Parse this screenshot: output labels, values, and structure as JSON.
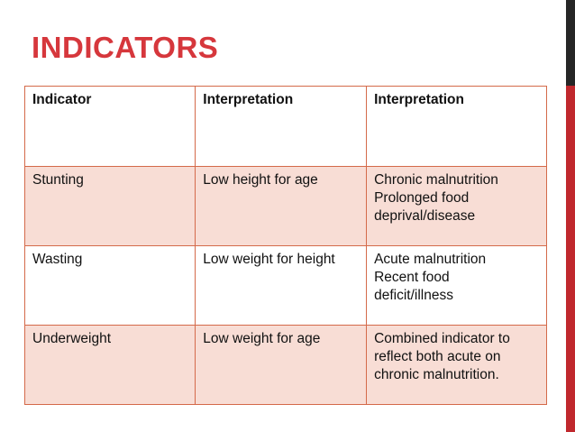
{
  "slide": {
    "title": "INDICATORS",
    "title_color": "#d6373c",
    "accent_colors": {
      "right_bar_dark": "#262626",
      "right_bar_red": "#c0282d",
      "table_border": "#d46a4a",
      "row_shade": "#f8ddd5"
    }
  },
  "table": {
    "headers": [
      "Indicator",
      "Interpretation",
      "Interpretation"
    ],
    "rows": [
      {
        "indicator": "Stunting",
        "interpretation_1": "Low height for age",
        "interpretation_2_lines": [
          "Chronic malnutrition",
          "Prolonged food",
          "deprival/disease"
        ]
      },
      {
        "indicator": "Wasting",
        "interpretation_1": "Low weight for height",
        "interpretation_2_lines": [
          "Acute malnutrition",
          "Recent food",
          "deficit/illness"
        ]
      },
      {
        "indicator": "Underweight",
        "interpretation_1": "Low weight for age",
        "interpretation_2_lines": [
          "Combined indicator to",
          "reflect both acute on",
          "chronic malnutrition."
        ]
      }
    ]
  }
}
